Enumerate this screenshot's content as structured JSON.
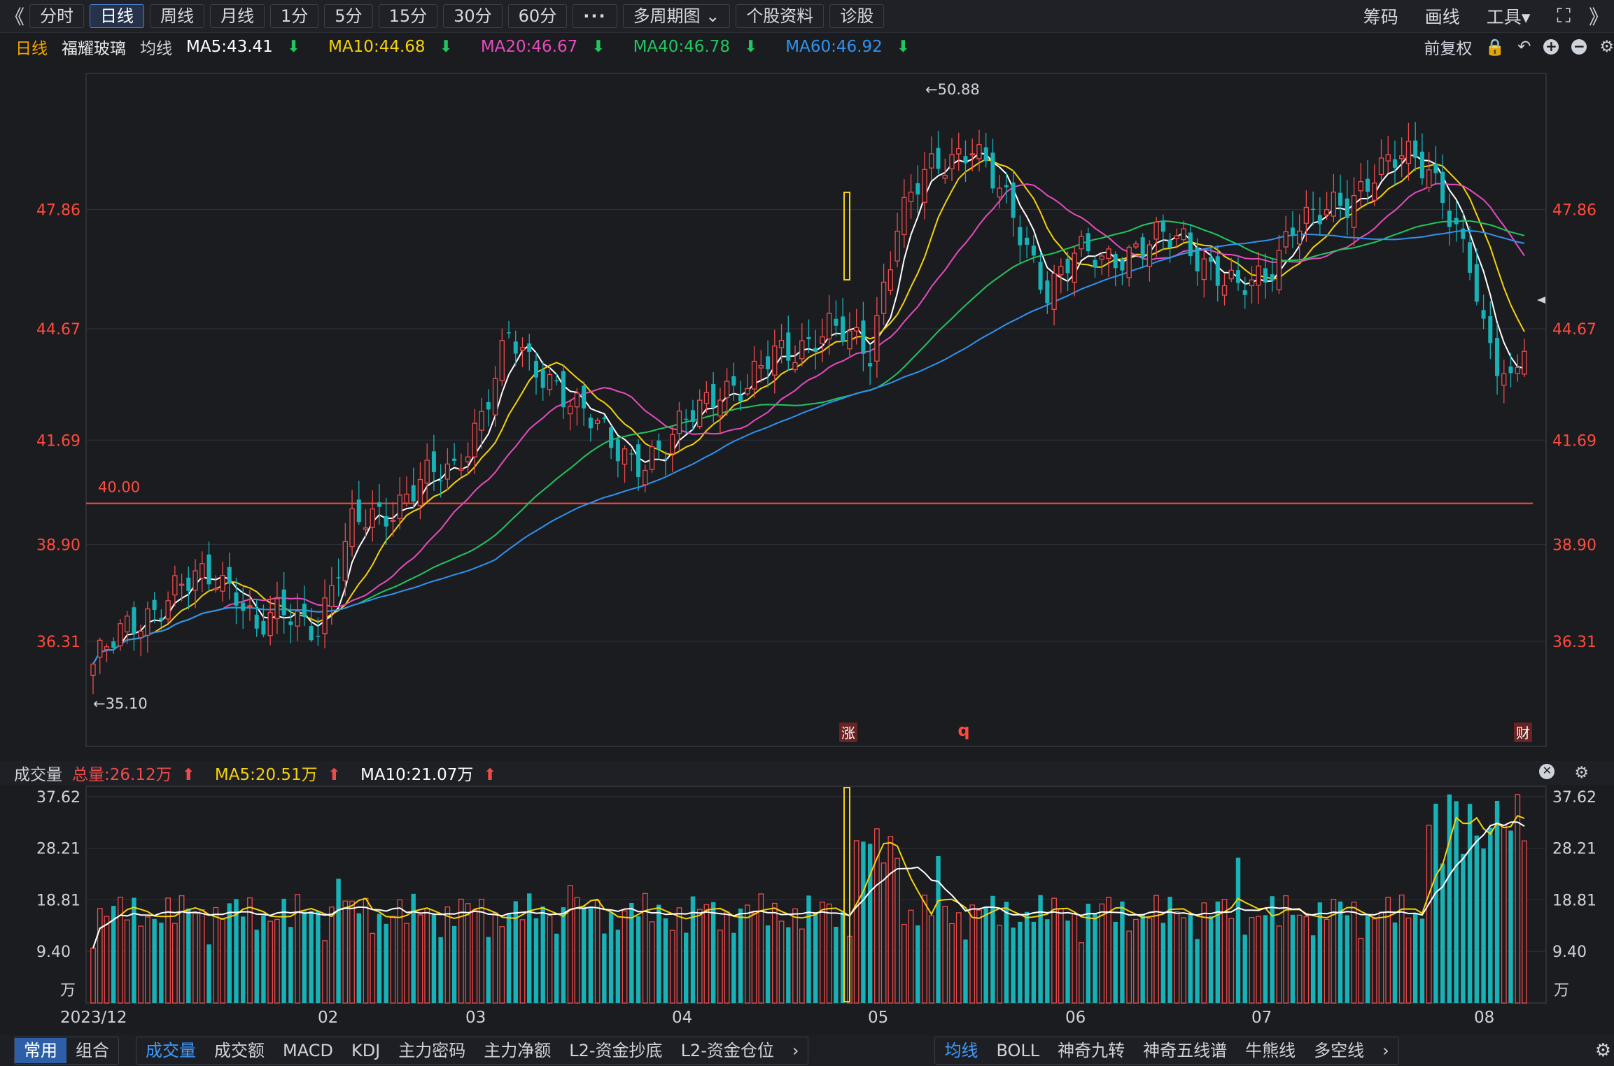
{
  "toolbar": {
    "back": "《",
    "tabs": [
      "分时",
      "日线",
      "周线",
      "月线",
      "1分",
      "5分",
      "15分",
      "30分",
      "60分"
    ],
    "more": "···",
    "multi": "多周期图",
    "profile": "个股资料",
    "diagnose": "诊股",
    "right": [
      "筹码",
      "画线",
      "工具"
    ]
  },
  "info": {
    "period": "日线",
    "name": "福耀玻璃",
    "ma_label": "均线",
    "ma5": "MA5:43.41",
    "ma10": "MA10:44.68",
    "ma20": "MA20:46.67",
    "ma40": "MA40:46.78",
    "ma60": "MA60:46.92",
    "adj": "前复权"
  },
  "colors": {
    "up": "#ee4b4b",
    "down": "#17b1b6",
    "ma5": "#ffffff",
    "ma10": "#f5d20a",
    "ma20": "#e64bbd",
    "ma40": "#22c55e",
    "ma60": "#2f93f0",
    "bg": "#1b1c20"
  },
  "chart_data": [
    {
      "type": "candlestick",
      "title": "福耀玻璃",
      "y_ticks": [
        "47.86",
        "44.67",
        "41.69",
        "38.90",
        "36.31"
      ],
      "ylim": [
        33.5,
        51.5
      ],
      "hline": {
        "value": 40.0,
        "label": "40.00"
      },
      "high_marker": "←50.88",
      "low_marker": "←35.10",
      "event_markers": [
        "涨",
        "q",
        "财"
      ],
      "x_ticks": [
        "2023/12",
        "02",
        "03",
        "04",
        "05",
        "06",
        "07",
        "08"
      ],
      "series_names": [
        "MA5",
        "MA10",
        "MA20",
        "MA40",
        "MA60"
      ],
      "waypoints": [
        [
          0,
          35.7
        ],
        [
          5,
          36.6
        ],
        [
          12,
          37.7
        ],
        [
          18,
          38.0
        ],
        [
          21,
          37.8
        ],
        [
          24,
          36.6
        ],
        [
          28,
          37.0
        ],
        [
          33,
          36.8
        ],
        [
          38,
          39.3
        ],
        [
          43,
          39.8
        ],
        [
          48,
          40.6
        ],
        [
          53,
          40.8
        ],
        [
          57,
          42.5
        ],
        [
          61,
          44.4
        ],
        [
          64,
          43.6
        ],
        [
          68,
          43.3
        ],
        [
          72,
          42.4
        ],
        [
          76,
          41.5
        ],
        [
          80,
          41.2
        ],
        [
          84,
          41.4
        ],
        [
          88,
          42.4
        ],
        [
          92,
          43.2
        ],
        [
          96,
          43.0
        ],
        [
          100,
          44.0
        ],
        [
          104,
          44.3
        ],
        [
          108,
          44.6
        ],
        [
          112,
          44.3
        ],
        [
          114,
          44.1
        ],
        [
          116,
          45.9
        ],
        [
          118,
          47.5
        ],
        [
          122,
          48.7
        ],
        [
          126,
          49.3
        ],
        [
          129,
          49.7
        ],
        [
          132,
          48.6
        ],
        [
          136,
          47.2
        ],
        [
          140,
          45.8
        ],
        [
          144,
          46.6
        ],
        [
          148,
          46.5
        ],
        [
          152,
          46.8
        ],
        [
          156,
          47.0
        ],
        [
          160,
          47.0
        ],
        [
          164,
          46.4
        ],
        [
          168,
          45.6
        ],
        [
          172,
          46.0
        ],
        [
          176,
          47.6
        ],
        [
          180,
          47.6
        ],
        [
          184,
          48.0
        ],
        [
          188,
          49.0
        ],
        [
          192,
          49.2
        ],
        [
          196,
          48.9
        ],
        [
          198,
          48.4
        ],
        [
          200,
          47.4
        ],
        [
          202,
          46.4
        ],
        [
          204,
          44.4
        ],
        [
          206,
          43.6
        ],
        [
          208,
          43.2
        ],
        [
          210,
          44.6
        ]
      ],
      "candle_count": 211
    },
    {
      "type": "bar",
      "title": "成交量",
      "y_ticks": [
        "37.62",
        "28.21",
        "18.81",
        "9.40"
      ],
      "unit": "万",
      "ylim": [
        0,
        39.5
      ],
      "stats": {
        "total": "总量:26.12万",
        "ma5": "MA5:20.51万",
        "ma10": "MA10:21.07万"
      }
    }
  ],
  "bottom": {
    "left": [
      "常用",
      "组合"
    ],
    "indicators": [
      "成交量",
      "成交额",
      "MACD",
      "KDJ",
      "主力密码",
      "主力净额",
      "L2-资金抄底",
      "L2-资金仓位"
    ],
    "overlays": [
      "均线",
      "BOLL",
      "神奇九转",
      "神奇五线谱",
      "牛熊线",
      "多空线"
    ]
  }
}
